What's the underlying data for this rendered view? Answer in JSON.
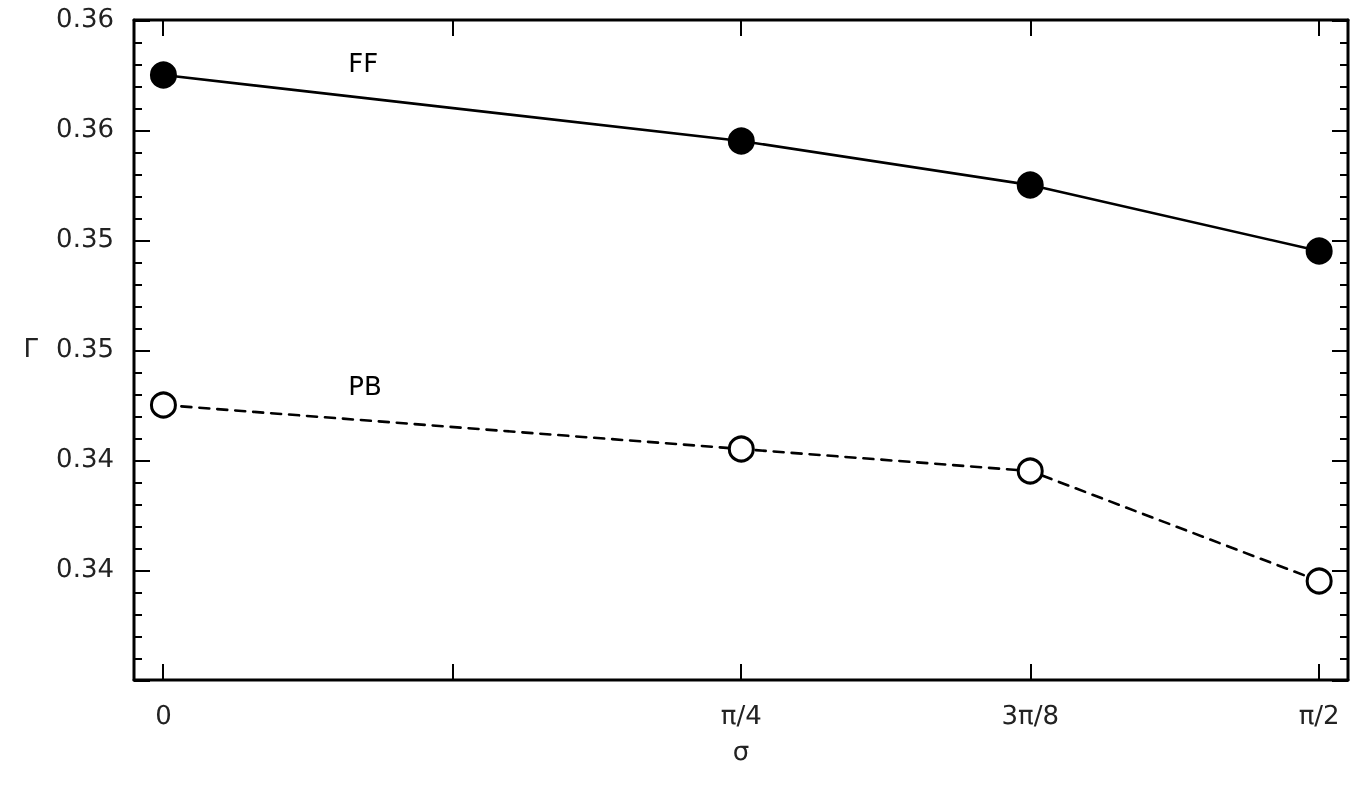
{
  "chart_data": {
    "type": "line",
    "xlabel": "σ",
    "ylabel": "Γ",
    "x": [
      0,
      0.7854,
      1.1781,
      1.5708
    ],
    "xlim": [
      -0.04,
      1.61
    ],
    "xticks": [
      {
        "value": 0,
        "label": "0"
      },
      {
        "value": 0.3927,
        "label": null
      },
      {
        "value": 0.7854,
        "label": "π/4"
      },
      {
        "value": 1.1781,
        "label": "3π/8"
      },
      {
        "value": 1.5708,
        "label": "π/2"
      }
    ],
    "ylim": [
      0.335,
      0.365
    ],
    "yticks": [
      {
        "value": 0.335,
        "label": null
      },
      {
        "value": 0.34,
        "label": "0.34"
      },
      {
        "value": 0.345,
        "label": "0.34"
      },
      {
        "value": 0.35,
        "label": "0.35"
      },
      {
        "value": 0.355,
        "label": "0.35"
      },
      {
        "value": 0.36,
        "label": "0.36"
      },
      {
        "value": 0.365,
        "label": "0.36"
      }
    ],
    "series": [
      {
        "name": "FF",
        "color": "#000000",
        "line_style": "solid",
        "values": [
          0.3625,
          0.3595,
          0.3575,
          0.3545
        ]
      },
      {
        "name": "PB",
        "color": "#000000",
        "line_style": "dashed",
        "values": [
          0.3475,
          0.3455,
          0.3445,
          0.3395
        ]
      }
    ],
    "marker": "circle",
    "grid": false,
    "legend": false
  }
}
